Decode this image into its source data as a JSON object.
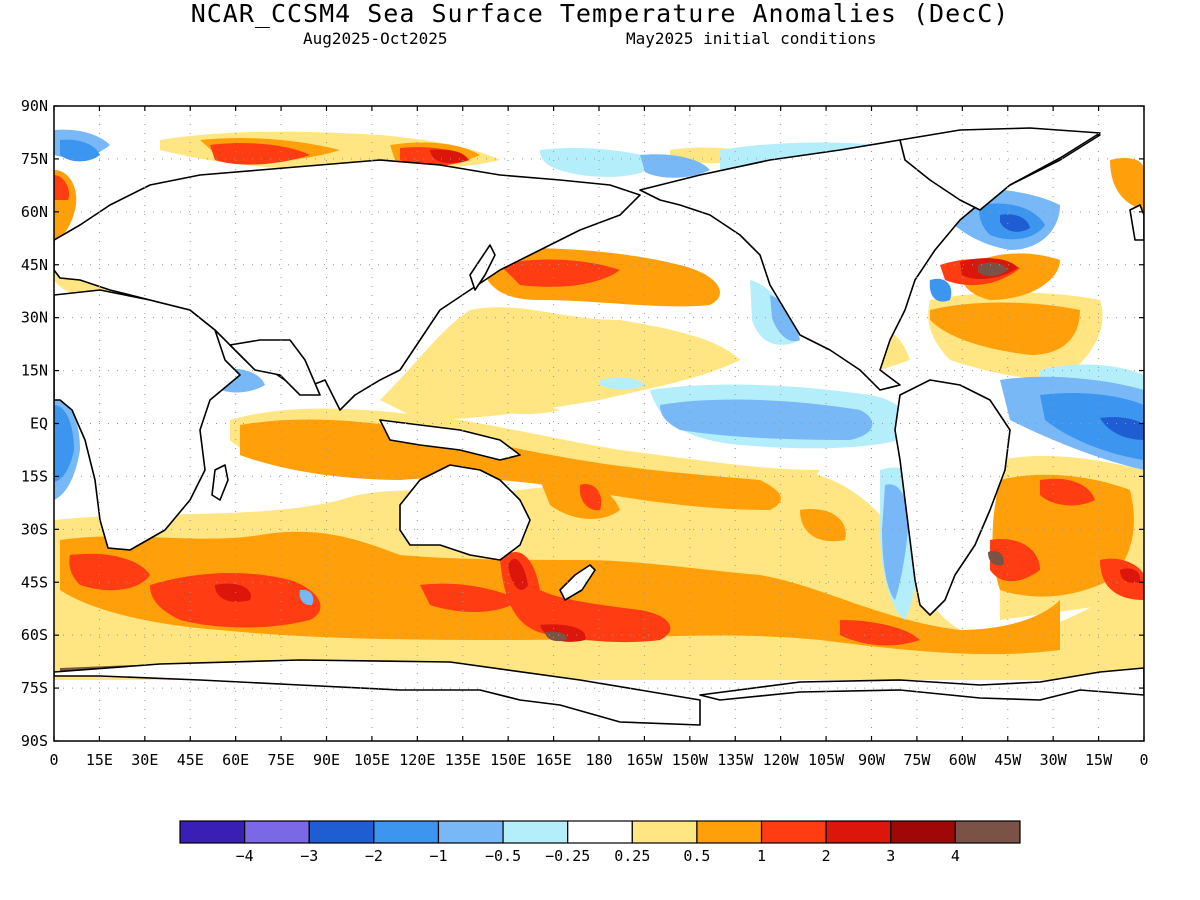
{
  "title": "NCAR_CCSM4 Sea Surface Temperature Anomalies (DecC)",
  "subtitle_left": "Aug2025-Oct2025",
  "subtitle_right": "May2025 initial conditions",
  "lat_labels": [
    "90N",
    "75N",
    "60N",
    "45N",
    "30N",
    "15N",
    "EQ",
    "15S",
    "30S",
    "45S",
    "60S",
    "75S",
    "90S"
  ],
  "lon_labels": [
    "0",
    "15E",
    "30E",
    "45E",
    "60E",
    "75E",
    "90E",
    "105E",
    "120E",
    "135E",
    "150E",
    "165E",
    "180",
    "165W",
    "150W",
    "135W",
    "120W",
    "105W",
    "90W",
    "75W",
    "60W",
    "45W",
    "30W",
    "15W",
    "0"
  ],
  "colorbar": {
    "colors": [
      "#3a1fb4",
      "#7a68e6",
      "#1e5ed2",
      "#3c96f0",
      "#78b8f6",
      "#b4eefa",
      "#ffffff",
      "#ffe682",
      "#ffa00a",
      "#ff3c12",
      "#dc160a",
      "#a00808",
      "#7a5246"
    ],
    "labels": [
      "-4",
      "-3",
      "-2",
      "-1",
      "-0.5",
      "-0.25",
      "0.25",
      "0.5",
      "1",
      "2",
      "3",
      "4"
    ]
  },
  "anomaly_regions": [
    {
      "region": "North Pacific",
      "level": "1 to 2"
    },
    {
      "region": "Northwest Atlantic",
      "level": "above 4"
    },
    {
      "region": "Southern Ocean south of Australia",
      "level": "2 to 3"
    },
    {
      "region": "South Atlantic",
      "level": "1 to 3"
    },
    {
      "region": "Equatorial east Pacific",
      "level": "-0.5 to -1"
    },
    {
      "region": "Tropical east Atlantic",
      "level": "-1 to -2"
    },
    {
      "region": "North Atlantic subpolar gyre",
      "level": "-1 to -2"
    }
  ]
}
